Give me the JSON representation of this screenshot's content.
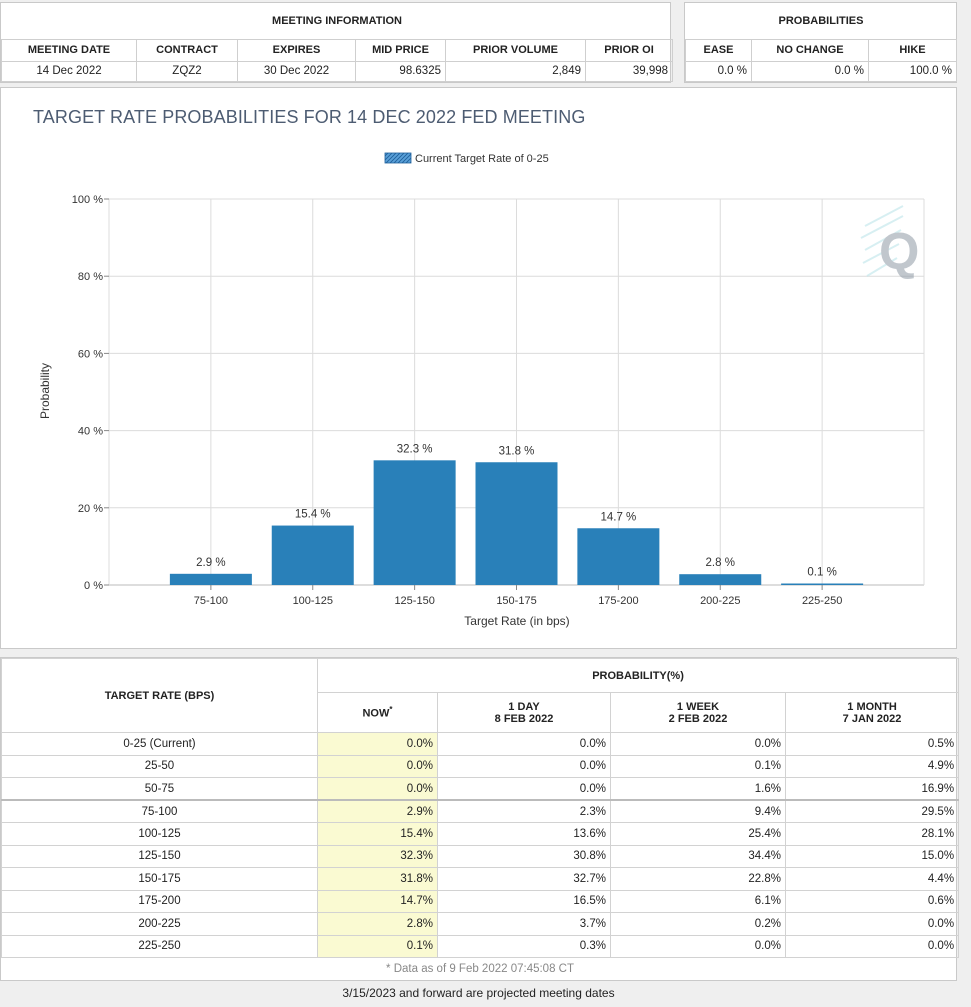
{
  "meeting_info": {
    "title": "MEETING INFORMATION",
    "columns": [
      "MEETING DATE",
      "CONTRACT",
      "EXPIRES",
      "MID PRICE",
      "PRIOR VOLUME",
      "PRIOR OI"
    ],
    "values": [
      "14 Dec 2022",
      "ZQZ2",
      "30 Dec 2022",
      "98.6325",
      "2,849",
      "39,998"
    ]
  },
  "probabilities": {
    "title": "PROBABILITIES",
    "columns": [
      "EASE",
      "NO CHANGE",
      "HIKE"
    ],
    "values": [
      "0.0 %",
      "0.0 %",
      "100.0 %"
    ]
  },
  "chart_data": {
    "type": "bar",
    "title": "TARGET RATE PROBABILITIES FOR 14 DEC 2022 FED MEETING",
    "legend": "Current Target Rate of 0-25",
    "categories": [
      "75-100",
      "100-125",
      "125-150",
      "150-175",
      "175-200",
      "200-225",
      "225-250"
    ],
    "values": [
      2.9,
      15.4,
      32.3,
      31.8,
      14.7,
      2.8,
      0.1
    ],
    "data_labels": [
      "2.9 %",
      "15.4 %",
      "32.3 %",
      "31.8 %",
      "14.7 %",
      "2.8 %",
      "0.1 %"
    ],
    "ylim": [
      0,
      100
    ],
    "yticks": [
      0,
      20,
      40,
      60,
      80,
      100
    ],
    "ytick_labels": [
      "0 %",
      "20 %",
      "40 %",
      "60 %",
      "80 %",
      "100 %"
    ],
    "xlabel": "Target Rate (in bps)",
    "ylabel": "Probability",
    "bar_color": "#2980b9",
    "watermark": "Q"
  },
  "prob_table": {
    "header_rate": "TARGET RATE (BPS)",
    "header_prob": "PROBABILITY(%)",
    "now": "NOW",
    "now_mark": "*",
    "day1": "1 DAY",
    "day1_date": "8 FEB 2022",
    "week1": "1 WEEK",
    "week1_date": "2 FEB 2022",
    "month1": "1 MONTH",
    "month1_date": "7 JAN 2022",
    "rows": [
      {
        "rate": "0-25 (Current)",
        "now": "0.0%",
        "day": "0.0%",
        "week": "0.0%",
        "month": "0.5%"
      },
      {
        "rate": "25-50",
        "now": "0.0%",
        "day": "0.0%",
        "week": "0.1%",
        "month": "4.9%"
      },
      {
        "rate": "50-75",
        "now": "0.0%",
        "day": "0.0%",
        "week": "1.6%",
        "month": "16.9%"
      },
      {
        "rate": "75-100",
        "now": "2.9%",
        "day": "2.3%",
        "week": "9.4%",
        "month": "29.5%"
      },
      {
        "rate": "100-125",
        "now": "15.4%",
        "day": "13.6%",
        "week": "25.4%",
        "month": "28.1%"
      },
      {
        "rate": "125-150",
        "now": "32.3%",
        "day": "30.8%",
        "week": "34.4%",
        "month": "15.0%"
      },
      {
        "rate": "150-175",
        "now": "31.8%",
        "day": "32.7%",
        "week": "22.8%",
        "month": "4.4%"
      },
      {
        "rate": "175-200",
        "now": "14.7%",
        "day": "16.5%",
        "week": "6.1%",
        "month": "0.6%"
      },
      {
        "rate": "200-225",
        "now": "2.8%",
        "day": "3.7%",
        "week": "0.2%",
        "month": "0.0%"
      },
      {
        "rate": "225-250",
        "now": "0.1%",
        "day": "0.3%",
        "week": "0.0%",
        "month": "0.0%"
      }
    ],
    "footnote": "* Data as of 9 Feb 2022 07:45:08 CT"
  },
  "projected_note": "3/15/2023 and forward are projected meeting dates"
}
